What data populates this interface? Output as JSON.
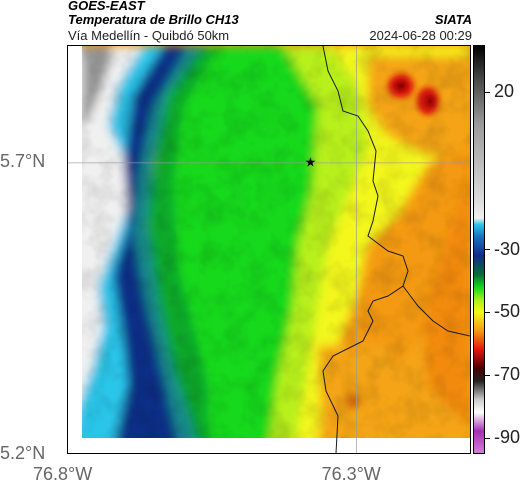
{
  "header": {
    "source": "GOES-EAST",
    "product": "Temperatura de Brillo CH13",
    "route": "Vía Medellín - Quibdó 50km",
    "org": "SIATA",
    "timestamp": "2024-06-28 00:29"
  },
  "map": {
    "lat_range": [
      5.2,
      5.9
    ],
    "lon_range": [
      -76.8,
      -76.1
    ],
    "lat_ticks": [
      {
        "value": 5.7,
        "label": "5.7°N"
      },
      {
        "value": 5.2,
        "label": "5.2°N"
      }
    ],
    "lon_ticks": [
      {
        "value": -76.8,
        "label": "76.8°W"
      },
      {
        "value": -76.3,
        "label": "76.3°W"
      }
    ],
    "gridlines": true,
    "marker": {
      "lat": 5.7,
      "lon": -76.38,
      "symbol": "★",
      "icon": "star-icon"
    }
  },
  "colorbar": {
    "ticks": [
      {
        "value": 20,
        "label": "20"
      },
      {
        "value": -30,
        "label": "-30"
      },
      {
        "value": -50,
        "label": "-50"
      },
      {
        "value": -70,
        "label": "-70"
      },
      {
        "value": -90,
        "label": "-90"
      }
    ],
    "colors": {
      "warm_top": "#000000",
      "gray": "#9a9a9a",
      "light": "#f0f0f0",
      "cyan": "#29c6ea",
      "blue": "#0e2d86",
      "green": "#11d81a",
      "yellow": "#f3f71c",
      "orange": "#f49a12",
      "red": "#e2150f",
      "purple": "#a32fb0"
    }
  }
}
